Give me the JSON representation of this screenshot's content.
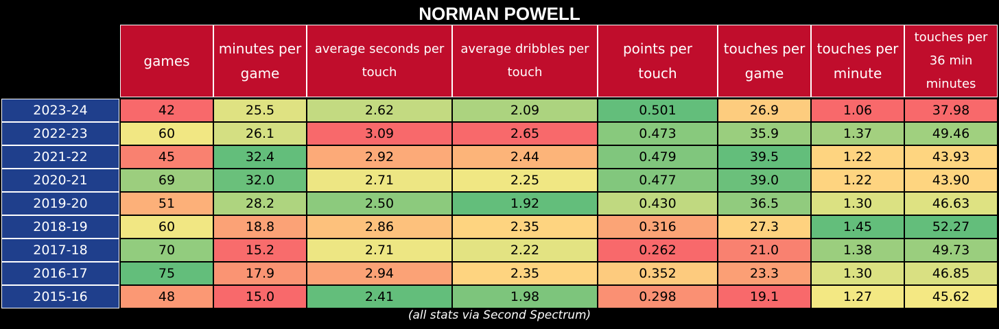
{
  "title": "NORMAN POWELL",
  "footnote": "(all stats via Second Spectrum)",
  "colors": {
    "header_bg": "#c00d2c",
    "season_bg": "#1f3f8c",
    "scale_low": "#f8696b",
    "scale_mid": "#ffeb84",
    "scale_high": "#63be7b"
  },
  "chart_data": {
    "type": "table",
    "title": "NORMAN POWELL",
    "columns": [
      "games",
      "minutes per game",
      "average seconds per touch",
      "average dribbles per touch",
      "points per touch",
      "touches per game",
      "touches per minute",
      "touches per 36 min minutes"
    ],
    "rows": [
      {
        "season": "2023-24",
        "values": [
          "42",
          "25.5",
          "2.62",
          "2.09",
          "0.501",
          "26.9",
          "1.06",
          "37.98"
        ]
      },
      {
        "season": "2022-23",
        "values": [
          "60",
          "26.1",
          "3.09",
          "2.65",
          "0.473",
          "35.9",
          "1.37",
          "49.46"
        ]
      },
      {
        "season": "2021-22",
        "values": [
          "45",
          "32.4",
          "2.92",
          "2.44",
          "0.479",
          "39.5",
          "1.22",
          "43.93"
        ]
      },
      {
        "season": "2020-21",
        "values": [
          "69",
          "32.0",
          "2.71",
          "2.25",
          "0.477",
          "39.0",
          "1.22",
          "43.90"
        ]
      },
      {
        "season": "2019-20",
        "values": [
          "51",
          "28.2",
          "2.50",
          "1.92",
          "0.430",
          "36.5",
          "1.30",
          "46.63"
        ]
      },
      {
        "season": "2018-19",
        "values": [
          "60",
          "18.8",
          "2.86",
          "2.35",
          "0.316",
          "27.3",
          "1.45",
          "52.27"
        ]
      },
      {
        "season": "2017-18",
        "values": [
          "70",
          "15.2",
          "2.71",
          "2.22",
          "0.262",
          "21.0",
          "1.38",
          "49.73"
        ]
      },
      {
        "season": "2016-17",
        "values": [
          "75",
          "17.9",
          "2.94",
          "2.35",
          "0.352",
          "23.3",
          "1.30",
          "46.85"
        ]
      },
      {
        "season": "2015-16",
        "values": [
          "48",
          "15.0",
          "2.41",
          "1.98",
          "0.298",
          "19.1",
          "1.27",
          "45.62"
        ]
      }
    ],
    "color_scale_reversed": [
      false,
      false,
      true,
      true,
      false,
      false,
      false,
      false
    ]
  }
}
